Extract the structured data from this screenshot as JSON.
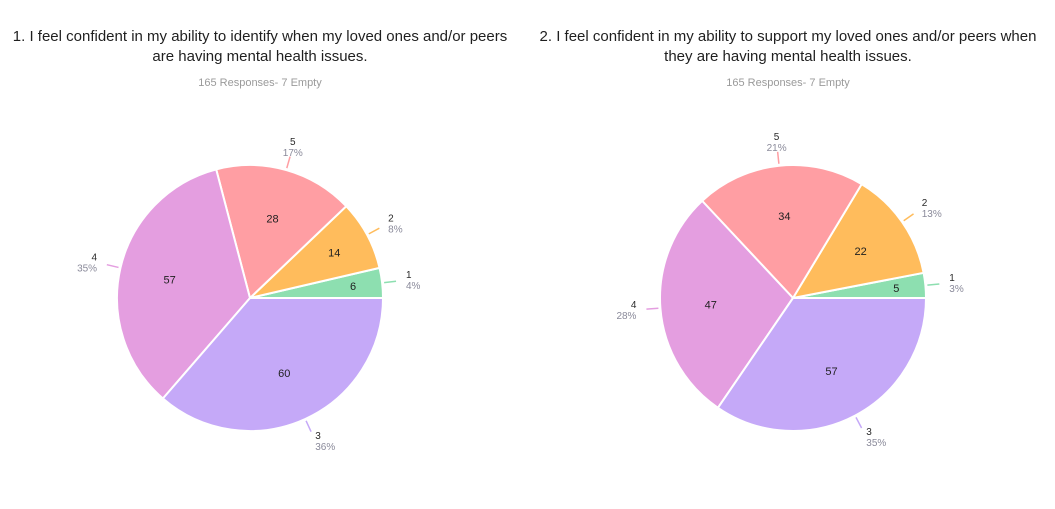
{
  "chart_data": [
    {
      "type": "pie",
      "title": "1. I feel confident in my ability to identify when my loved ones and/or peers are having mental health issues.",
      "subtitle": "165 Responses- 7 Empty",
      "slices": [
        {
          "name": "1",
          "value": 6,
          "percent": "4%",
          "color": "#8ddfb0"
        },
        {
          "name": "2",
          "value": 14,
          "percent": "8%",
          "color": "#ffbc5c"
        },
        {
          "name": "5",
          "value": 28,
          "percent": "17%",
          "color": "#ff9ea3"
        },
        {
          "name": "4",
          "value": 57,
          "percent": "35%",
          "color": "#e49ee0"
        },
        {
          "name": "3",
          "value": 60,
          "percent": "36%",
          "color": "#c5a9f8"
        }
      ]
    },
    {
      "type": "pie",
      "title": "2. I feel confident in my ability to support my loved ones and/or peers when they are having mental health issues.",
      "subtitle": "165 Responses- 7 Empty",
      "slices": [
        {
          "name": "1",
          "value": 5,
          "percent": "3%",
          "color": "#8ddfb0"
        },
        {
          "name": "2",
          "value": 22,
          "percent": "13%",
          "color": "#ffbc5c"
        },
        {
          "name": "5",
          "value": 34,
          "percent": "21%",
          "color": "#ff9ea3"
        },
        {
          "name": "4",
          "value": 47,
          "percent": "28%",
          "color": "#e49ee0"
        },
        {
          "name": "3",
          "value": 57,
          "percent": "35%",
          "color": "#c5a9f8"
        }
      ]
    }
  ]
}
